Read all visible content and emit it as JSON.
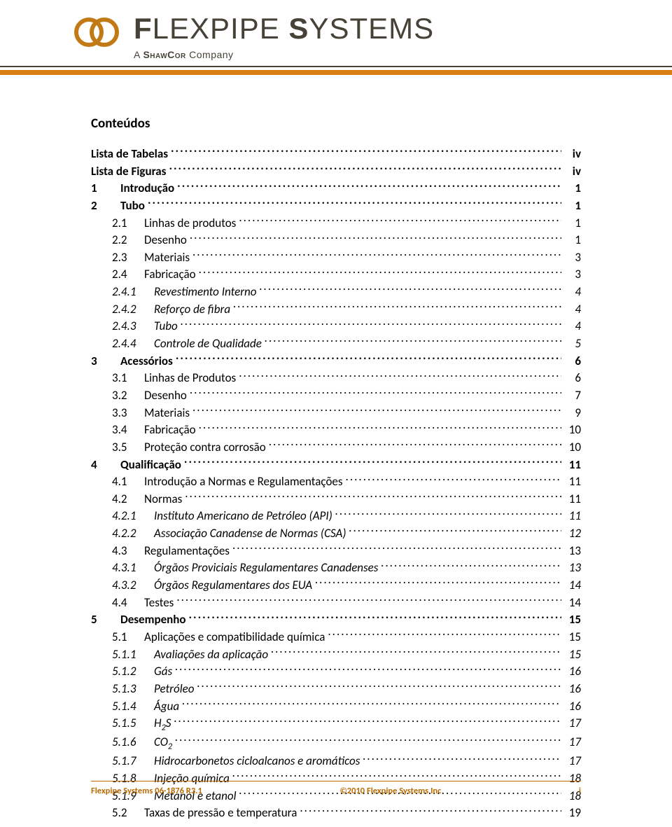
{
  "colors": {
    "brand_text": "#474237",
    "accent": "#d77f13",
    "rule_thin": "#474237",
    "ring_stroke": "#c27a17",
    "footer_text": "#bb6a00",
    "footer_rule": "#c06a00",
    "body_text": "#000000",
    "background": "#ffffff"
  },
  "brand": {
    "name_1": "F",
    "name_2": "LEXPIPE ",
    "name_3": "S",
    "name_4": "YSTEMS",
    "tagline_prefix": "A ",
    "tagline_company": "ShawCor",
    "tagline_suffix": " Company"
  },
  "toc_title": "Conteúdos",
  "toc": [
    {
      "level": 0,
      "num": "",
      "label": "Lista de Tabelas",
      "page": "iv"
    },
    {
      "level": 0,
      "num": "",
      "label": "Lista de Figuras",
      "page": "iv"
    },
    {
      "level": 1,
      "num": "1",
      "label": "Introdução",
      "page": "1"
    },
    {
      "level": 1,
      "num": "2",
      "label": "Tubo",
      "page": "1"
    },
    {
      "level": 2,
      "num": "2.1",
      "label": "Linhas de produtos",
      "page": "1"
    },
    {
      "level": 2,
      "num": "2.2",
      "label": "Desenho",
      "page": "1"
    },
    {
      "level": 2,
      "num": "2.3",
      "label": "Materiais",
      "page": "3"
    },
    {
      "level": 2,
      "num": "2.4",
      "label": "Fabricação",
      "page": "3"
    },
    {
      "level": 3,
      "num": "2.4.1",
      "label": "Revestimento Interno",
      "page": "4"
    },
    {
      "level": 3,
      "num": "2.4.2",
      "label": "Reforço de fibra",
      "page": "4"
    },
    {
      "level": 3,
      "num": "2.4.3",
      "label": "Tubo",
      "page": "4"
    },
    {
      "level": 3,
      "num": "2.4.4",
      "label": "Controle de Qualidade",
      "page": "5"
    },
    {
      "level": 1,
      "num": "3",
      "label": "Acessórios",
      "page": "6"
    },
    {
      "level": 2,
      "num": "3.1",
      "label": "Linhas de Produtos",
      "page": "6"
    },
    {
      "level": 2,
      "num": "3.2",
      "label": "Desenho",
      "page": "7"
    },
    {
      "level": 2,
      "num": "3.3",
      "label": "Materiais",
      "page": "9"
    },
    {
      "level": 2,
      "num": "3.4",
      "label": "Fabricação",
      "page": "10"
    },
    {
      "level": 2,
      "num": "3.5",
      "label": "Proteção contra corrosão",
      "page": "10"
    },
    {
      "level": 1,
      "num": "4",
      "label": "Qualificação",
      "page": "11"
    },
    {
      "level": 2,
      "num": "4.1",
      "label": "Introdução a Normas e Regulamentações",
      "page": "11"
    },
    {
      "level": 2,
      "num": "4.2",
      "label": "Normas",
      "page": "11"
    },
    {
      "level": 3,
      "num": "4.2.1",
      "label": "Instituto Americano de Petróleo (API)",
      "page": "11"
    },
    {
      "level": 3,
      "num": "4.2.2",
      "label": "Associação Canadense de Normas (CSA)",
      "page": "12"
    },
    {
      "level": 2,
      "num": "4.3",
      "label": "Regulamentações",
      "page": "13"
    },
    {
      "level": 3,
      "num": "4.3.1",
      "label": "Órgãos Proviciais Regulamentares Canadenses",
      "page": "13"
    },
    {
      "level": 3,
      "num": "4.3.2",
      "label": "Órgãos Regulamentares dos EUA",
      "page": "14"
    },
    {
      "level": 2,
      "num": "4.4",
      "label": "Testes",
      "page": "14"
    },
    {
      "level": 1,
      "num": "5",
      "label": "Desempenho",
      "page": "15"
    },
    {
      "level": 2,
      "num": "5.1",
      "label": "Aplicações e compatibilidade química",
      "page": "15"
    },
    {
      "level": 3,
      "num": "5.1.1",
      "label": "Avaliações da aplicação",
      "page": "15"
    },
    {
      "level": 3,
      "num": "5.1.2",
      "label": "Gás",
      "page": "16"
    },
    {
      "level": 3,
      "num": "5.1.3",
      "label": "Petróleo",
      "page": "16"
    },
    {
      "level": 3,
      "num": "5.1.4",
      "label": "Água",
      "page": "16"
    },
    {
      "level": 3,
      "num": "5.1.5",
      "label": "H|2|S",
      "page": "17",
      "chem": true
    },
    {
      "level": 3,
      "num": "5.1.6",
      "label": "CO|2|",
      "page": "17",
      "chem": true
    },
    {
      "level": 3,
      "num": "5.1.7",
      "label": "Hidrocarbonetos cicloalcanos e aromáticos",
      "page": "17"
    },
    {
      "level": 3,
      "num": "5.1.8",
      "label": "Injeção química",
      "page": "18"
    },
    {
      "level": 3,
      "num": "5.1.9",
      "label": "Metanol e etanol",
      "page": "18"
    },
    {
      "level": 2,
      "num": "5.2",
      "label": "Taxas de pressão e temperatura",
      "page": "19"
    }
  ],
  "footer": {
    "left": "Flexpipe Systems 06-1876 R3.1",
    "center": "©2010 Flexpipe Systems Inc",
    "right": "i"
  }
}
